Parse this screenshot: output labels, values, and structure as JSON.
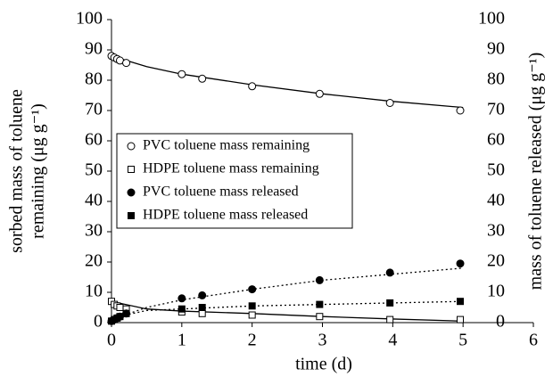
{
  "chart_data": {
    "type": "scatter",
    "x_label": "time (d)",
    "y_label": [
      "sorbed mass of toluene",
      "remaining (μg g⁻¹)"
    ],
    "y2_label": "mass of toluene released (μg g⁻¹)",
    "xlim": [
      0,
      6
    ],
    "xticks": [
      0,
      1,
      2,
      3,
      4,
      5,
      6
    ],
    "ylim": [
      0,
      100
    ],
    "yticks": [
      0,
      10,
      20,
      30,
      40,
      50,
      60,
      70,
      80,
      90,
      100
    ],
    "y2lim": [
      0,
      100
    ],
    "y2ticks": [
      0,
      10,
      20,
      30,
      40,
      50,
      60,
      70,
      80,
      90,
      100
    ],
    "x": [
      0,
      0.04,
      0.08,
      0.12,
      0.21,
      1,
      1.29,
      2,
      2.96,
      3.96,
      4.96
    ],
    "series": [
      {
        "name": "PVC toluene mass remaining",
        "marker": "open-circle",
        "color": "#000000",
        "values": [
          88,
          87.5,
          87,
          86.5,
          85.7,
          82,
          80.5,
          78,
          75.5,
          72.5,
          70
        ]
      },
      {
        "name": "HDPE toluene mass remaining",
        "marker": "open-square",
        "color": "#000000",
        "values": [
          7,
          6,
          5.5,
          5,
          4.5,
          3.5,
          3,
          2.5,
          2,
          1,
          1
        ]
      },
      {
        "name": "PVC toluene mass released",
        "marker": "filled-circle",
        "color": "#000000",
        "axis": "y2",
        "values": [
          0.5,
          1,
          1.5,
          2,
          3,
          8,
          9,
          11,
          14,
          16.5,
          19.5
        ]
      },
      {
        "name": "HDPE toluene mass released",
        "marker": "filled-square",
        "color": "#000000",
        "axis": "y2",
        "values": [
          0.5,
          1,
          1.5,
          2,
          3,
          4.5,
          5,
          5.5,
          6,
          6.5,
          7
        ]
      }
    ],
    "curves": [
      {
        "dash": false,
        "x": [
          0,
          0.5,
          1,
          2,
          3,
          4,
          5
        ],
        "values": [
          88,
          84.5,
          82,
          78.5,
          75.5,
          73,
          71
        ]
      },
      {
        "dash": false,
        "x": [
          0,
          0.5,
          1,
          2,
          3,
          4,
          5
        ],
        "values": [
          7,
          4.5,
          3.8,
          3,
          2,
          1.2,
          0.5
        ]
      },
      {
        "dash": true,
        "axis": "y2",
        "x": [
          0,
          0.5,
          1,
          2,
          3,
          4,
          5
        ],
        "values": [
          1,
          5,
          7.5,
          11,
          14,
          16,
          18
        ]
      },
      {
        "dash": true,
        "axis": "y2",
        "x": [
          0,
          0.5,
          1,
          2,
          3,
          4,
          5
        ],
        "values": [
          1.5,
          4,
          4.5,
          5.5,
          6,
          6.5,
          7
        ]
      }
    ]
  }
}
